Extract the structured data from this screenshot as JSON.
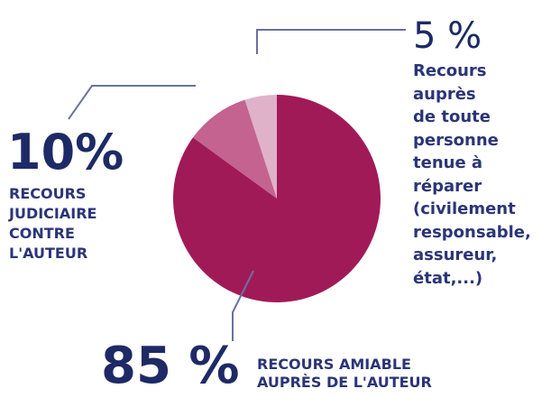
{
  "chart_data": {
    "type": "pie",
    "categories": [
      "RECOURS AMIABLE\nAUPRÈS DE L'AUTEUR",
      "RECOURS\nJUDICIAIRE\nCONTRE\nL'AUTEUR",
      "Recours\nauprès\nde toute\npersonne\ntenue à\nréparer\n(civilement\nresponsable,\nassureur,\nétat,...)"
    ],
    "values": [
      85,
      10,
      5
    ],
    "value_labels": [
      "85 %",
      "10%",
      "5 %"
    ],
    "colors": [
      "#a11a58",
      "#c4638f",
      "#dfb2ca"
    ]
  }
}
